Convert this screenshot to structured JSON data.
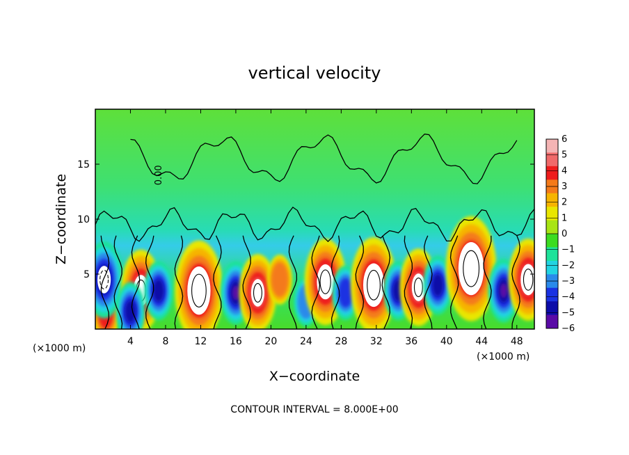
{
  "chart_data": {
    "type": "heatmap",
    "title": "vertical velocity",
    "xlabel": "X−coordinate",
    "ylabel": "Z−coordinate",
    "x_unit_label_left": "(×1000 m)",
    "x_unit_label_right": "(×1000 m)",
    "xlim": [
      0,
      50
    ],
    "ylim": [
      0,
      20
    ],
    "x_ticks": [
      "4",
      "8",
      "12",
      "16",
      "20",
      "24",
      "28",
      "32",
      "36",
      "40",
      "44",
      "48"
    ],
    "y_ticks": [
      "5",
      "10",
      "15"
    ],
    "contour_label": "0.00",
    "footnote": "CONTOUR INTERVAL = 8.000E+00",
    "colorbar": {
      "min": -6,
      "max": 6,
      "ticks": [
        "6",
        "5",
        "4",
        "3",
        "2",
        "1",
        "0",
        "−1",
        "−2",
        "−3",
        "−4",
        "−5",
        "−6"
      ],
      "colors": [
        "#f4b4b4",
        "#f06a6a",
        "#ee1c1c",
        "#f47a1a",
        "#f6b400",
        "#e9e600",
        "#a8e414",
        "#3cdc20",
        "#1ee29a",
        "#22d4e2",
        "#2a8aea",
        "#1a32e2",
        "#0c0ca8",
        "#5a0aa6"
      ]
    },
    "features": [
      {
        "kind": "updraft",
        "x": 1.2,
        "z": 1.4,
        "w": 4
      },
      {
        "kind": "downdraft",
        "x": 1,
        "z": 4.5,
        "w": -9
      },
      {
        "kind": "updraft",
        "x": 5.2,
        "z": 3.5,
        "w": 10
      },
      {
        "kind": "downdraft",
        "x": 4,
        "z": 1.6,
        "w": -5
      },
      {
        "kind": "downdraft",
        "x": 7.2,
        "z": 3.5,
        "w": -5
      },
      {
        "kind": "updraft",
        "x": 11.8,
        "z": 3.5,
        "w": 14
      },
      {
        "kind": "downdraft",
        "x": 16,
        "z": 3.3,
        "w": -6
      },
      {
        "kind": "updraft",
        "x": 18.5,
        "z": 3.3,
        "w": 9
      },
      {
        "kind": "updraft",
        "x": 21,
        "z": 4.5,
        "w": 3
      },
      {
        "kind": "downdraft",
        "x": 24,
        "z": 2.5,
        "w": -3
      },
      {
        "kind": "updraft",
        "x": 26.2,
        "z": 4.3,
        "w": 11
      },
      {
        "kind": "downdraft",
        "x": 28.5,
        "z": 3.3,
        "w": -4
      },
      {
        "kind": "updraft",
        "x": 31.7,
        "z": 4,
        "w": 13
      },
      {
        "kind": "downdraft",
        "x": 34.5,
        "z": 3.5,
        "w": -5
      },
      {
        "kind": "updraft",
        "x": 36.8,
        "z": 3.8,
        "w": 9
      },
      {
        "kind": "downdraft",
        "x": 39,
        "z": 4,
        "w": -5
      },
      {
        "kind": "updraft",
        "x": 42.8,
        "z": 5.5,
        "w": 15
      },
      {
        "kind": "downdraft",
        "x": 46.5,
        "z": 3.5,
        "w": -6
      },
      {
        "kind": "updraft",
        "x": 49.3,
        "z": 4.5,
        "w": 10
      }
    ]
  }
}
